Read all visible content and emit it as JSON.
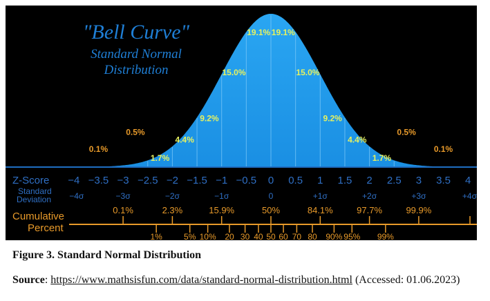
{
  "chart_data": {
    "type": "area",
    "title": "\"Bell Curve\"",
    "subtitle_line1": "Standard Normal",
    "subtitle_line2": "Distribution",
    "x_range": [
      -4,
      4
    ],
    "peak_relative_height": 1.0,
    "z_score_label": "Z-Score",
    "std_dev_label_line1": "Standard",
    "std_dev_label_line2": "Deviation",
    "z_ticks": [
      "−4",
      "−3.5",
      "−3",
      "−2.5",
      "−2",
      "−1.5",
      "−1",
      "−0.5",
      "0",
      "0.5",
      "1",
      "1.5",
      "2",
      "2.5",
      "3",
      "3.5",
      "4"
    ],
    "z_tick_values": [
      -4,
      -3.5,
      -3,
      -2.5,
      -2,
      -1.5,
      -1,
      -0.5,
      0,
      0.5,
      1,
      1.5,
      2,
      2.5,
      3,
      3.5,
      4
    ],
    "sigma_ticks": [
      {
        "x": -4,
        "label": "−4σ"
      },
      {
        "x": -3,
        "label": "−3σ"
      },
      {
        "x": -2,
        "label": "−2σ"
      },
      {
        "x": -1,
        "label": "−1σ"
      },
      {
        "x": 0,
        "label": "0"
      },
      {
        "x": 1,
        "label": "+1σ"
      },
      {
        "x": 2,
        "label": "+2σ"
      },
      {
        "x": 3,
        "label": "+3σ"
      },
      {
        "x": 4,
        "label": "+4σ"
      }
    ],
    "region_percents": [
      {
        "label": "0.1%",
        "x": -3.5,
        "level": 0.1,
        "color": "#e89a2a"
      },
      {
        "label": "0.5%",
        "x": -2.75,
        "level": 0.21,
        "color": "#e89a2a"
      },
      {
        "label": "1.7%",
        "x": -2.25,
        "level": 0.04,
        "color": "#e7f260"
      },
      {
        "label": "4.4%",
        "x": -1.75,
        "level": 0.16,
        "color": "#e7f260"
      },
      {
        "label": "9.2%",
        "x": -1.25,
        "level": 0.3,
        "color": "#e7f260"
      },
      {
        "label": "15.0%",
        "x": -0.75,
        "level": 0.6,
        "color": "#e7f260"
      },
      {
        "label": "19.1%",
        "x": -0.25,
        "level": 0.86,
        "color": "#e7f260"
      },
      {
        "label": "19.1%",
        "x": 0.25,
        "level": 0.86,
        "color": "#e7f260"
      },
      {
        "label": "15.0%",
        "x": 0.75,
        "level": 0.6,
        "color": "#e7f260"
      },
      {
        "label": "9.2%",
        "x": 1.25,
        "level": 0.3,
        "color": "#e7f260"
      },
      {
        "label": "4.4%",
        "x": 1.75,
        "level": 0.16,
        "color": "#e7f260"
      },
      {
        "label": "1.7%",
        "x": 2.25,
        "level": 0.04,
        "color": "#e7f260"
      },
      {
        "label": "0.5%",
        "x": 2.75,
        "level": 0.21,
        "color": "#e89a2a"
      },
      {
        "label": "0.1%",
        "x": 3.5,
        "level": 0.1,
        "color": "#e89a2a"
      }
    ],
    "cumulative_label_line1": "Cumulative",
    "cumulative_label_line2": "Percent",
    "cumulative_major": [
      {
        "z": -3,
        "label": "0.1%"
      },
      {
        "z": -2,
        "label": "2.3%"
      },
      {
        "z": -1,
        "label": "15.9%"
      },
      {
        "z": 0,
        "label": "50%"
      },
      {
        "z": 1,
        "label": "84.1%"
      },
      {
        "z": 2,
        "label": "97.7%"
      },
      {
        "z": 3,
        "label": "99.9%"
      }
    ],
    "cumulative_minor": [
      {
        "z": -2.326,
        "label": "1%"
      },
      {
        "z": -1.645,
        "label": "5%"
      },
      {
        "z": -1.2816,
        "label": "10%"
      },
      {
        "z": -0.8416,
        "label": "20"
      },
      {
        "z": -0.5244,
        "label": "30"
      },
      {
        "z": -0.2533,
        "label": "40"
      },
      {
        "z": 0,
        "label": "50"
      },
      {
        "z": 0.2533,
        "label": "60"
      },
      {
        "z": 0.5244,
        "label": "70"
      },
      {
        "z": 0.8416,
        "label": "80"
      },
      {
        "z": 1.2816,
        "label": "90%"
      },
      {
        "z": 1.645,
        "label": "95%"
      },
      {
        "z": 2.326,
        "label": "99%"
      }
    ],
    "colors": {
      "background": "#000000",
      "curve_fill": "#1a8fe3",
      "curve_fill_top": "#2aa6f2",
      "divider": "#7cc8f8",
      "baseline": "#1f6ec2",
      "title": "#1f7fd6",
      "axis_text": "#2f6fc4",
      "cumulative": "#e89a2a"
    }
  },
  "caption": {
    "figure_label": "Figure 3. Standard Normal Distribution",
    "source_label": "Source",
    "source_sep": ": ",
    "source_url": "https://www.mathsisfun.com/data/standard-normal-distribution.html",
    "accessed": " (Accessed: 01.06.2023)"
  }
}
